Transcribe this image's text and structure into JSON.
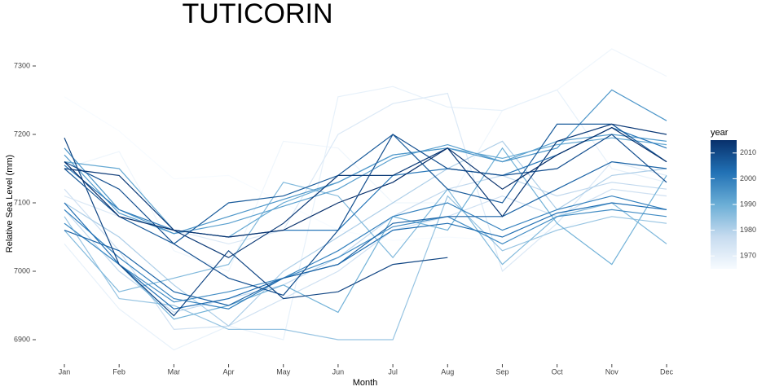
{
  "chart_data": {
    "type": "line",
    "title": "TUTICORIN",
    "x_label": "Month",
    "y_label": "Relative Sea Level (mm)",
    "categories": [
      "Jan",
      "Feb",
      "Mar",
      "Apr",
      "May",
      "Jun",
      "Jul",
      "Aug",
      "Sep",
      "Oct",
      "Nov",
      "Dec"
    ],
    "ylim": [
      6880,
      7330
    ],
    "yticks": [
      6900,
      7000,
      7100,
      7200,
      7300
    ],
    "legend_title": "year",
    "colorlim": [
      1965,
      2015
    ],
    "colorticks": [
      1970,
      1980,
      1990,
      2000,
      2010
    ],
    "colorscale": [
      "#f7fbff",
      "#c6dbef",
      "#6baed6",
      "#2171b5",
      "#08306b"
    ],
    "series": [
      {
        "year": 1965,
        "values": [
          7255,
          7205,
          7135,
          7140,
          7100,
          7060,
          7045,
          7050,
          7045,
          7060,
          7090,
          7080
        ]
      },
      {
        "year": 1967,
        "values": [
          7150,
          7175,
          7030,
          7000,
          7190,
          7180,
          7100,
          7100,
          7235,
          7265,
          7325,
          7285
        ]
      },
      {
        "year": 1969,
        "values": [
          7040,
          6945,
          6885,
          6920,
          6900,
          7255,
          7270,
          7240,
          7235,
          7265,
          7150,
          7130
        ]
      },
      {
        "year": 1972,
        "values": [
          7110,
          7080,
          7060,
          7040,
          7060,
          7200,
          7245,
          7260,
          7000,
          7070,
          7160,
          7140
        ]
      },
      {
        "year": 1975,
        "values": [
          7120,
          7030,
          6915,
          6920,
          6960,
          7000,
          7060,
          7080,
          7110,
          7080,
          7120,
          7110
        ]
      },
      {
        "year": 1978,
        "values": [
          7090,
          7000,
          6940,
          6960,
          6980,
          7020,
          7080,
          7120,
          7140,
          7110,
          7130,
          7120
        ]
      },
      {
        "year": 1981,
        "values": [
          7100,
          7050,
          6980,
          6920,
          7000,
          7050,
          7100,
          7150,
          7190,
          7090,
          7140,
          7150
        ]
      },
      {
        "year": 1984,
        "values": [
          7080,
          6960,
          6950,
          6915,
          6915,
          6900,
          6900,
          7110,
          7030,
          7060,
          7080,
          7070
        ]
      },
      {
        "year": 1987,
        "values": [
          7060,
          6970,
          6990,
          7010,
          7130,
          7110,
          7020,
          7120,
          7010,
          7080,
          7100,
          7040
        ]
      },
      {
        "year": 1989,
        "values": [
          7070,
          7010,
          6930,
          6950,
          6980,
          6940,
          7080,
          7060,
          7180,
          7070,
          7010,
          7140
        ]
      },
      {
        "year": 1991,
        "values": [
          7160,
          7150,
          7060,
          7050,
          7100,
          7130,
          7170,
          7180,
          7165,
          7185,
          7195,
          7185
        ]
      },
      {
        "year": 1993,
        "values": [
          7170,
          7085,
          7055,
          7070,
          7095,
          7120,
          7165,
          7185,
          7160,
          7190,
          7200,
          7190
        ]
      },
      {
        "year": 1995,
        "values": [
          7180,
          7090,
          7055,
          7080,
          7105,
          7130,
          7170,
          7180,
          7160,
          7180,
          7265,
          7220
        ]
      },
      {
        "year": 1997,
        "values": [
          7070,
          7010,
          6955,
          6970,
          6990,
          7020,
          7065,
          7080,
          7040,
          7080,
          7090,
          7080
        ]
      },
      {
        "year": 1999,
        "values": [
          7090,
          7020,
          6960,
          6945,
          6990,
          7030,
          7080,
          7100,
          7060,
          7090,
          7110,
          7090
        ]
      },
      {
        "year": 2001,
        "values": [
          7155,
          7090,
          7060,
          7050,
          7060,
          7060,
          7140,
          7150,
          7140,
          7170,
          7210,
          7180
        ]
      },
      {
        "year": 2003,
        "values": [
          7100,
          7010,
          6945,
          6960,
          6990,
          7010,
          7060,
          7070,
          7050,
          7085,
          7100,
          7090
        ]
      },
      {
        "year": 2005,
        "values": [
          7060,
          7030,
          6970,
          6950,
          6990,
          7010,
          7070,
          7080,
          7080,
          7120,
          7160,
          7150
        ]
      },
      {
        "year": 2007,
        "values": [
          7150,
          7080,
          7040,
          7100,
          7110,
          7140,
          7200,
          7120,
          7100,
          7215,
          7215,
          7160
        ]
      },
      {
        "year": 2009,
        "values": [
          7160,
          7120,
          7040,
          6990,
          6965,
          7060,
          7200,
          7150,
          7140,
          7150,
          7200,
          7130
        ]
      },
      {
        "year": 2011,
        "values": [
          7195,
          7010,
          6935,
          7030,
          6960,
          6970,
          7010,
          7020,
          null,
          null,
          null,
          null
        ]
      },
      {
        "year": 2013,
        "values": [
          7150,
          7140,
          7060,
          7020,
          7070,
          7140,
          7140,
          7180,
          7080,
          7190,
          7215,
          7200
        ]
      },
      {
        "year": 2015,
        "values": [
          7160,
          7080,
          7060,
          7050,
          7060,
          7100,
          7130,
          7180,
          7120,
          7170,
          7210,
          7160
        ]
      }
    ]
  }
}
